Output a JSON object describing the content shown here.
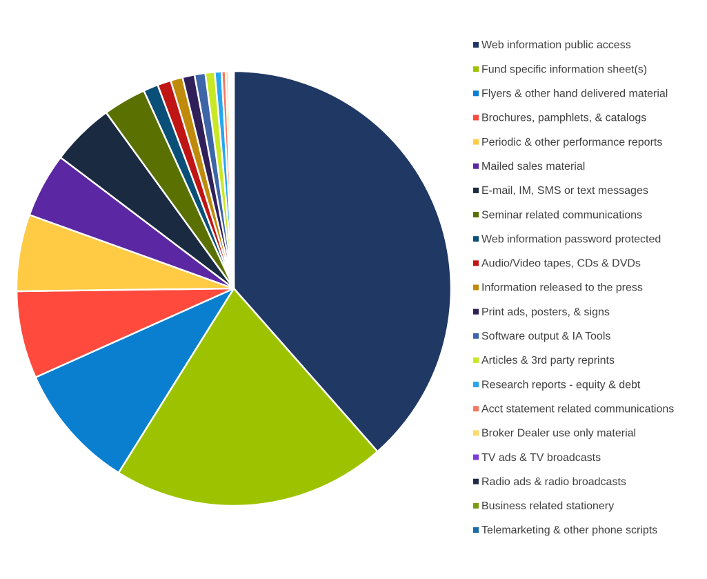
{
  "chart_data": {
    "type": "pie",
    "categories": [
      "Web information public access",
      "Fund specific information sheet(s)",
      "Flyers & other hand delivered material",
      "Brochures, pamphlets, & catalogs",
      "Periodic & other performance reports",
      "Mailed sales material",
      "E-mail, IM, SMS or text messages",
      "Seminar related communications",
      "Web information password protected",
      "Audio/Video tapes, CDs & DVDs",
      "Information released to the press",
      "Print ads, posters, & signs",
      "Software output & IA Tools",
      "Articles & 3rd party reprints",
      "Research reports - equity & debt",
      "Acct statement related communications",
      "Broker Dealer use only material",
      "TV ads & TV broadcasts",
      "Radio ads & radio broadcasts",
      "Business related stationery",
      "Telemarketing & other phone scripts"
    ],
    "values": [
      38.5,
      20.4,
      9.4,
      6.5,
      5.7,
      4.8,
      4.7,
      3.2,
      1.1,
      1.0,
      0.9,
      0.9,
      0.8,
      0.7,
      0.5,
      0.3,
      0.2,
      0.1,
      0.1,
      0.1,
      0.1
    ],
    "colors": [
      "#203864",
      "#9dc300",
      "#0a7fd0",
      "#ff4a3d",
      "#ffca44",
      "#5b27a3",
      "#1a2a40",
      "#5a7000",
      "#0a4f78",
      "#c01515",
      "#c08a0a",
      "#30205a",
      "#3d65a8",
      "#c8e826",
      "#27a6ef",
      "#f57862",
      "#ffd966",
      "#7d3ad6",
      "#1e2c4b",
      "#7a9a10",
      "#1a6ca8"
    ],
    "legend": "right"
  }
}
